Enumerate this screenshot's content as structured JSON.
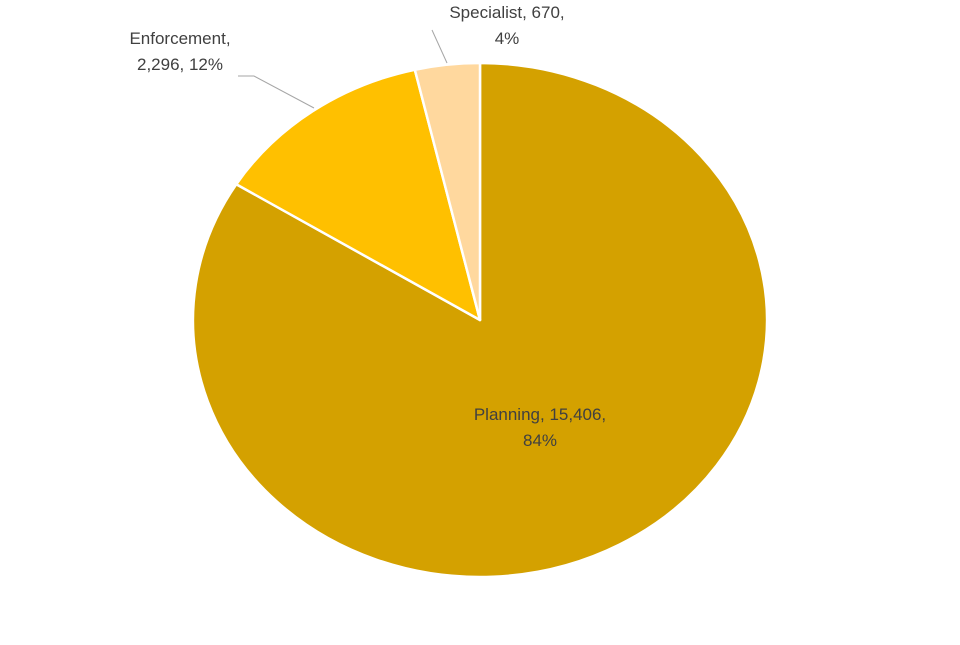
{
  "chart_data": {
    "type": "pie",
    "title": "",
    "slices": [
      {
        "label": "Planning",
        "value": 15406,
        "percent": 84,
        "color": "#D4A100",
        "label_line1": "Planning, 15,406,",
        "label_line2": "84%"
      },
      {
        "label": "Enforcement",
        "value": 2296,
        "percent": 12,
        "color": "#FFC000",
        "label_line1": "Enforcement,",
        "label_line2": "2,296, 12%"
      },
      {
        "label": "Specialist",
        "value": 670,
        "percent": 4,
        "color": "#FFD89E",
        "label_line1": "Specialist, 670,",
        "label_line2": "4%"
      }
    ],
    "start_angle_deg": 0,
    "direction": "clockwise",
    "slice_border_color": "#FFFFFF",
    "leader_line_color": "#A6A6A6",
    "label_color": "#404040",
    "legend": "none"
  }
}
